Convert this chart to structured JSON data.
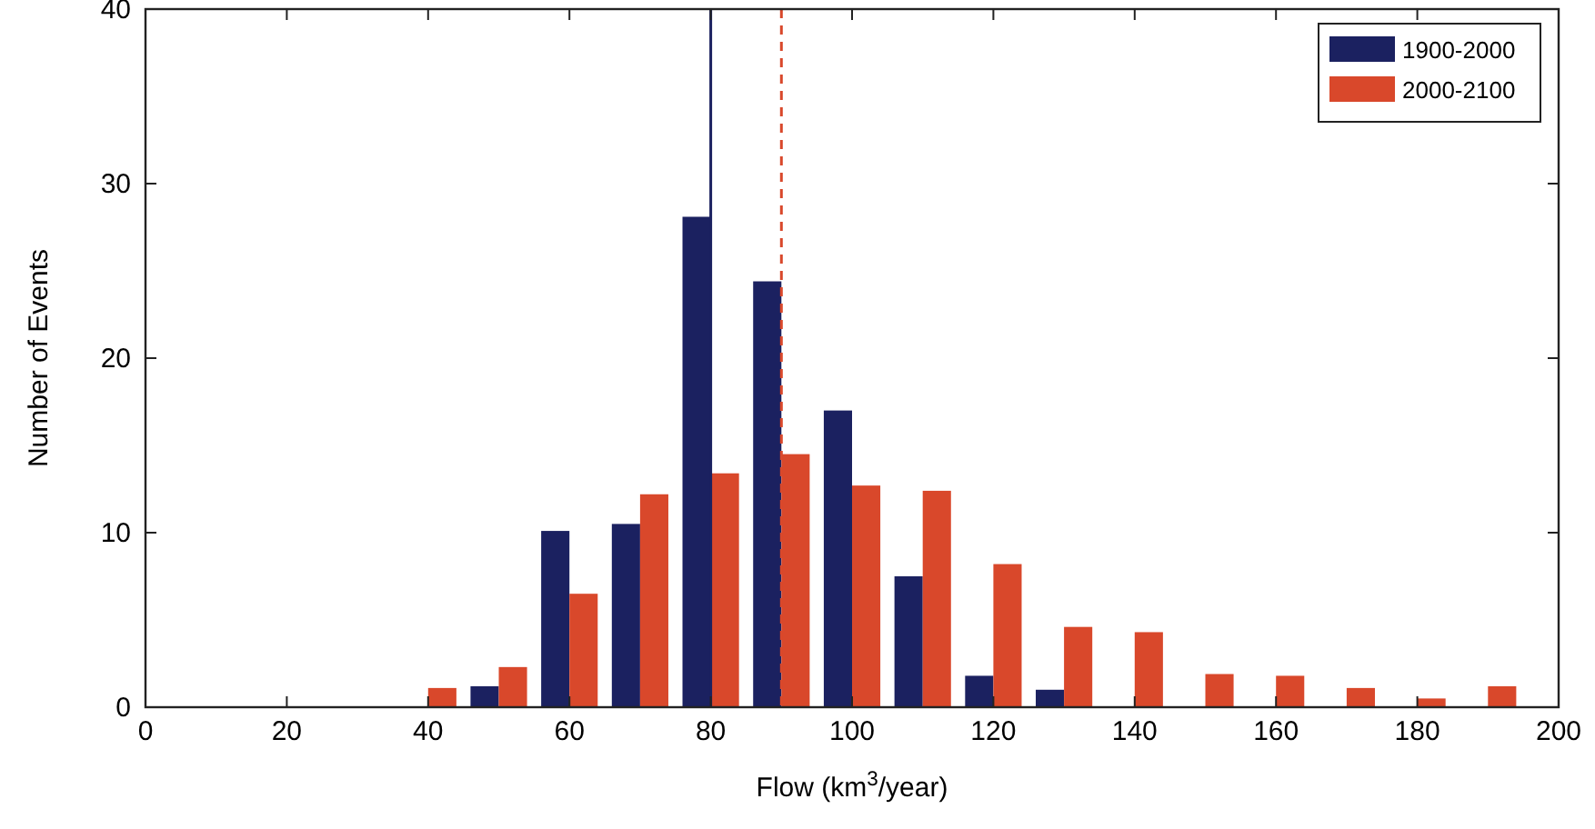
{
  "chart_data": {
    "type": "bar",
    "xlabel": "Flow (km$^{3}$/year)",
    "ylabel": "Number of Events",
    "x": [
      40,
      50,
      60,
      70,
      80,
      90,
      100,
      110,
      120,
      130,
      140,
      150,
      160,
      170,
      180,
      190
    ],
    "series": [
      {
        "name": "1900-2000",
        "color": "#1b2160",
        "values": [
          0,
          1.2,
          10.1,
          10.5,
          28.1,
          24.4,
          17,
          7.5,
          1.8,
          1,
          0,
          0,
          0,
          0,
          0,
          0
        ]
      },
      {
        "name": "2000-2100",
        "color": "#d9482b",
        "values": [
          1.1,
          2.3,
          6.5,
          12.2,
          13.4,
          14.5,
          12.7,
          12.4,
          8.2,
          4.6,
          4.3,
          1.9,
          1.8,
          1.1,
          0.5,
          1.2
        ]
      }
    ],
    "xlim": [
      0,
      200
    ],
    "xticks": [
      0,
      20,
      40,
      60,
      80,
      100,
      120,
      140,
      160,
      180,
      200
    ],
    "ylim": [
      0,
      40
    ],
    "yticks": [
      0,
      10,
      20,
      30,
      40
    ],
    "ref_lines": [
      {
        "axis": "x",
        "value": 80,
        "color": "#1b2160",
        "line_style": "solid"
      },
      {
        "axis": "x",
        "value": 90,
        "color": "#d9482b",
        "line_style": "dashed"
      }
    ],
    "grid": false,
    "legend": "top right"
  }
}
